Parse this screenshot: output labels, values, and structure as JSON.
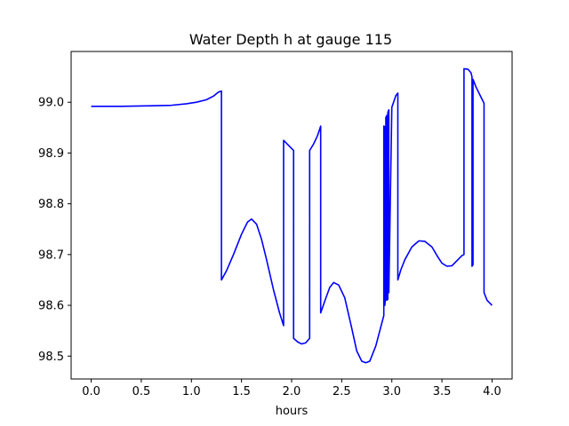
{
  "chart_data": {
    "type": "line",
    "title": "Water Depth h at gauge 115",
    "xlabel": "hours",
    "ylabel": "",
    "xlim": [
      -0.2,
      4.2
    ],
    "ylim": [
      98.455,
      99.1
    ],
    "grid": false,
    "x_ticks": [
      0.0,
      0.5,
      1.0,
      1.5,
      2.0,
      2.5,
      3.0,
      3.5,
      4.0
    ],
    "x_tick_labels": [
      "0.0",
      "0.5",
      "1.0",
      "1.5",
      "2.0",
      "2.5",
      "3.0",
      "3.5",
      "4.0"
    ],
    "y_ticks": [
      98.5,
      98.6,
      98.7,
      98.8,
      98.9,
      99.0
    ],
    "y_tick_labels": [
      "98.5",
      "98.6",
      "98.7",
      "98.8",
      "98.9",
      "99.0"
    ],
    "series": [
      {
        "color": "#0000ff",
        "x": [
          0.0,
          0.3,
          0.6,
          0.8,
          0.95,
          1.05,
          1.15,
          1.22,
          1.27,
          1.3,
          1.3,
          1.35,
          1.42,
          1.5,
          1.56,
          1.6,
          1.65,
          1.7,
          1.75,
          1.82,
          1.88,
          1.92,
          1.92,
          1.96,
          2.0,
          2.02,
          2.02,
          2.06,
          2.1,
          2.14,
          2.18,
          2.18,
          2.22,
          2.26,
          2.29,
          2.29,
          2.33,
          2.38,
          2.42,
          2.47,
          2.53,
          2.6,
          2.65,
          2.7,
          2.74,
          2.78,
          2.84,
          2.88,
          2.92,
          2.92,
          2.93,
          2.93,
          2.94,
          2.94,
          2.95,
          2.95,
          2.96,
          2.96,
          2.97,
          2.97,
          3.0,
          3.04,
          3.06,
          3.06,
          3.09,
          3.13,
          3.2,
          3.27,
          3.33,
          3.4,
          3.46,
          3.5,
          3.55,
          3.6,
          3.65,
          3.7,
          3.72,
          3.72,
          3.76,
          3.79,
          3.8,
          3.8,
          3.81,
          3.81,
          3.84,
          3.89,
          3.92,
          3.92,
          3.95,
          4.0
        ],
        "y": [
          98.992,
          98.992,
          98.993,
          98.994,
          98.997,
          99.0,
          99.005,
          99.012,
          99.02,
          99.022,
          98.65,
          98.668,
          98.7,
          98.74,
          98.764,
          98.77,
          98.76,
          98.73,
          98.69,
          98.63,
          98.585,
          98.56,
          98.925,
          98.917,
          98.909,
          98.905,
          98.535,
          98.528,
          98.524,
          98.526,
          98.535,
          98.905,
          98.918,
          98.935,
          98.953,
          98.585,
          98.608,
          98.635,
          98.645,
          98.64,
          98.615,
          98.555,
          98.51,
          98.49,
          98.487,
          98.49,
          98.52,
          98.55,
          98.58,
          98.953,
          98.952,
          98.6,
          98.62,
          98.97,
          98.974,
          98.61,
          98.612,
          98.98,
          98.985,
          98.625,
          98.99,
          99.013,
          99.018,
          98.65,
          98.67,
          98.69,
          98.715,
          98.727,
          98.726,
          98.715,
          98.695,
          98.683,
          98.677,
          98.678,
          98.688,
          98.698,
          98.7,
          99.066,
          99.065,
          99.058,
          99.05,
          98.677,
          98.68,
          99.045,
          99.03,
          99.01,
          98.998,
          98.625,
          98.61,
          98.6
        ]
      }
    ]
  }
}
